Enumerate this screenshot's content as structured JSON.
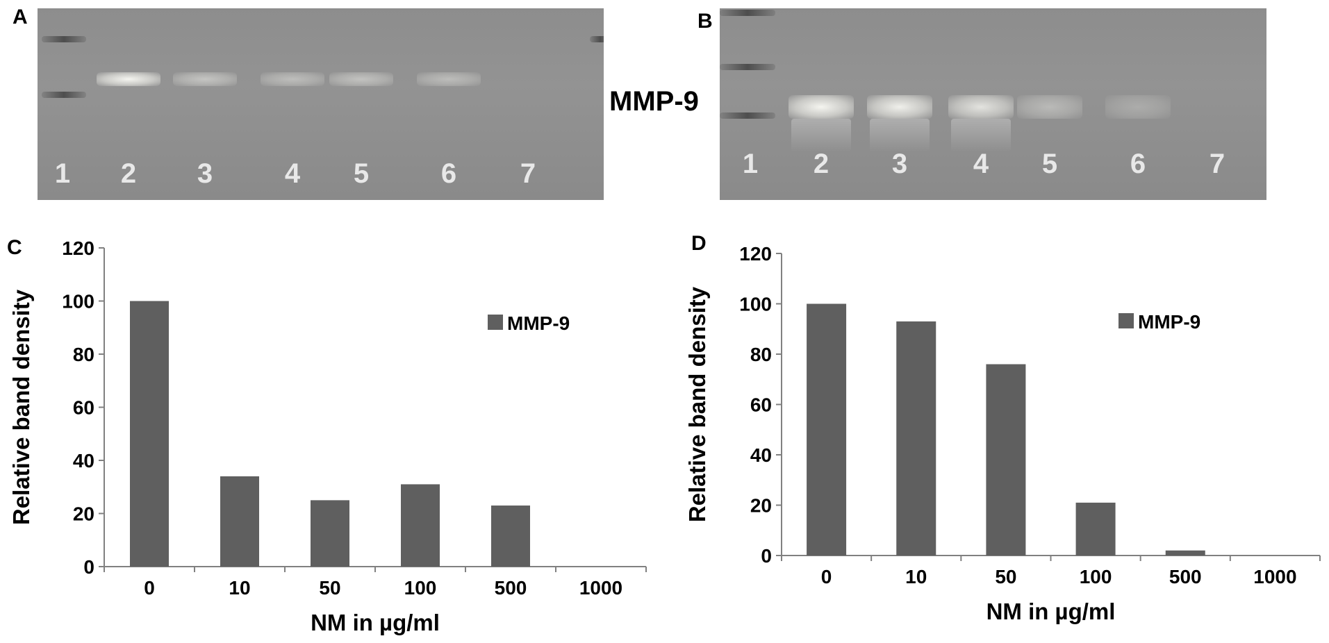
{
  "panels": {
    "a": "A",
    "b": "B",
    "c": "C",
    "d": "D"
  },
  "gel_label": "MMP-9",
  "gel_a": {
    "lanes": [
      "1",
      "2",
      "3",
      "4",
      "5",
      "6",
      "7"
    ],
    "band_intensity": [
      0,
      1.0,
      0.35,
      0.26,
      0.32,
      0.24,
      0
    ]
  },
  "gel_b": {
    "lanes": [
      "1",
      "2",
      "3",
      "4",
      "5",
      "6",
      "7"
    ],
    "band_intensity": [
      0,
      1.0,
      0.93,
      0.76,
      0.21,
      0.03,
      0
    ]
  },
  "colors": {
    "bar": "#5f5f5f",
    "axis": "#808080",
    "text": "#000000",
    "gel_band": "#f2f2ee"
  },
  "chart_data": [
    {
      "type": "bar",
      "panel": "C",
      "categories": [
        "0",
        "10",
        "50",
        "100",
        "500",
        "1000"
      ],
      "series": [
        {
          "name": "MMP-9",
          "values": [
            100,
            34,
            25,
            31,
            23,
            0
          ]
        }
      ],
      "xlabel": "NM in µg/ml",
      "ylabel": "Relative band density",
      "ylim": [
        0,
        120
      ],
      "yticks": [
        "0",
        "20",
        "40",
        "60",
        "80",
        "100",
        "120"
      ],
      "grid": false,
      "legend": "top-right"
    },
    {
      "type": "bar",
      "panel": "D",
      "categories": [
        "0",
        "10",
        "50",
        "100",
        "500",
        "1000"
      ],
      "series": [
        {
          "name": "MMP-9",
          "values": [
            100,
            93,
            76,
            21,
            2,
            0
          ]
        }
      ],
      "xlabel": "NM in µg/ml",
      "ylabel": "Relative band density",
      "ylim": [
        0,
        120
      ],
      "yticks": [
        "0",
        "20",
        "40",
        "60",
        "80",
        "100",
        "120"
      ],
      "grid": false,
      "legend": "top-right"
    }
  ]
}
